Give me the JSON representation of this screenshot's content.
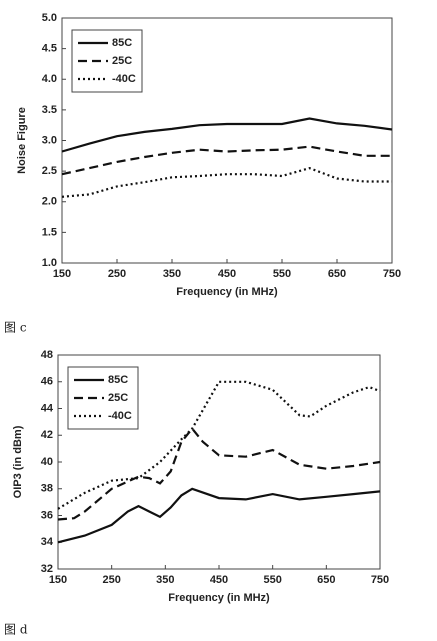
{
  "chart_data": [
    {
      "type": "line",
      "caption": "图 c",
      "x_label": "Frequency (in MHz)",
      "y_label": "Noise Figure",
      "xlim": [
        150,
        750
      ],
      "xticks": [
        150,
        250,
        350,
        450,
        550,
        650,
        750
      ],
      "ylim": [
        1,
        5
      ],
      "yticks": [
        {
          "value": 1,
          "label": "1.0"
        },
        1.5,
        {
          "value": 2,
          "label": "2.0"
        },
        2.5,
        {
          "value": 3,
          "label": "3.0"
        },
        3.5,
        {
          "value": 4,
          "label": "4.0"
        },
        4.5,
        {
          "value": 5,
          "label": "5.0"
        }
      ],
      "grid": false,
      "legend": "upper left",
      "series": [
        {
          "name": "85C",
          "color": "#111111",
          "style": "solid",
          "x": [
            150,
            200,
            250,
            300,
            350,
            400,
            450,
            500,
            550,
            600,
            650,
            700,
            750
          ],
          "values": [
            2.82,
            2.95,
            3.07,
            3.14,
            3.19,
            3.25,
            3.27,
            3.27,
            3.27,
            3.36,
            3.28,
            3.24,
            3.18
          ]
        },
        {
          "name": "25C",
          "color": "#111111",
          "style": "dashed",
          "x": [
            150,
            200,
            250,
            300,
            350,
            400,
            450,
            500,
            550,
            600,
            650,
            700,
            750
          ],
          "values": [
            2.45,
            2.55,
            2.65,
            2.73,
            2.8,
            2.85,
            2.82,
            2.84,
            2.85,
            2.9,
            2.82,
            2.75,
            2.75
          ]
        },
        {
          "name": "-40C",
          "color": "#111111",
          "style": "dotted",
          "x": [
            150,
            200,
            250,
            300,
            350,
            400,
            450,
            500,
            550,
            600,
            650,
            700,
            750
          ],
          "values": [
            2.08,
            2.12,
            2.25,
            2.32,
            2.4,
            2.42,
            2.45,
            2.45,
            2.42,
            2.55,
            2.38,
            2.33,
            2.33
          ]
        }
      ]
    },
    {
      "type": "line",
      "caption": "图 d",
      "x_label": "Frequency (in MHz)",
      "y_label": "OIP3 (in dBm)",
      "xlim": [
        150,
        750
      ],
      "xticks": [
        150,
        250,
        350,
        450,
        550,
        650,
        750
      ],
      "ylim": [
        32,
        48
      ],
      "yticks": [
        32,
        34,
        36,
        38,
        40,
        42,
        44,
        46,
        48
      ],
      "grid": false,
      "legend": "upper left",
      "series": [
        {
          "name": "85C",
          "color": "#111111",
          "style": "solid",
          "x": [
            150,
            200,
            250,
            280,
            300,
            320,
            340,
            360,
            380,
            400,
            450,
            500,
            550,
            600,
            650,
            700,
            750
          ],
          "values": [
            34.0,
            34.5,
            35.3,
            36.3,
            36.7,
            36.3,
            35.9,
            36.6,
            37.5,
            38.0,
            37.3,
            37.2,
            37.6,
            37.2,
            37.4,
            37.6,
            37.8
          ]
        },
        {
          "name": "25C",
          "color": "#111111",
          "style": "dashed",
          "x": [
            150,
            180,
            200,
            250,
            300,
            320,
            340,
            360,
            380,
            400,
            420,
            450,
            500,
            550,
            600,
            650,
            700,
            750
          ],
          "values": [
            35.7,
            35.8,
            36.3,
            38.0,
            38.9,
            38.8,
            38.4,
            39.3,
            41.5,
            42.5,
            41.5,
            40.5,
            40.4,
            40.9,
            39.8,
            39.5,
            39.7,
            40.0
          ]
        },
        {
          "name": "-40C",
          "color": "#111111",
          "style": "dotted",
          "x": [
            150,
            200,
            250,
            300,
            340,
            380,
            400,
            450,
            500,
            550,
            600,
            620,
            650,
            700,
            730,
            750
          ],
          "values": [
            36.5,
            37.7,
            38.6,
            38.8,
            40.0,
            41.7,
            42.5,
            46.0,
            46.0,
            45.4,
            43.5,
            43.4,
            44.2,
            45.2,
            45.6,
            45.3
          ]
        }
      ]
    }
  ]
}
